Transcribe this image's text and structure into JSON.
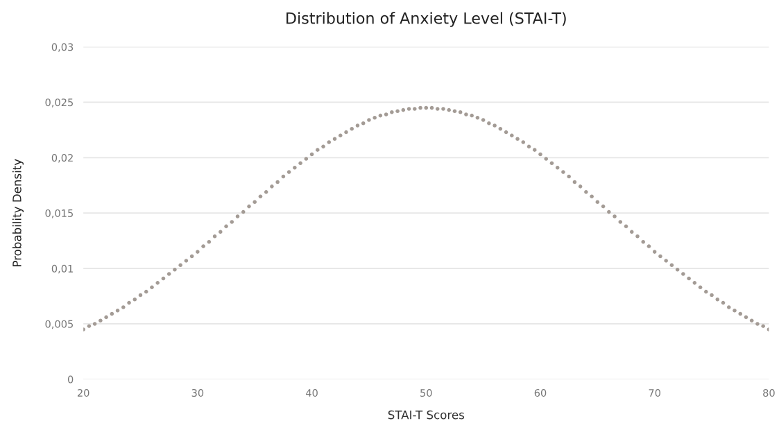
{
  "chart_data": {
    "type": "scatter",
    "title": "Distribution of Anxiety Level (STAI-T)",
    "xlabel": "STAI-T Scores",
    "ylabel": "Probability Density",
    "series": [
      {
        "color": "#a39b95",
        "x": [
          20,
          20.5,
          21,
          21.5,
          22,
          22.5,
          23,
          23.5,
          24,
          24.5,
          25,
          25.5,
          26,
          26.5,
          27,
          27.5,
          28,
          28.5,
          29,
          29.5,
          30,
          30.5,
          31,
          31.5,
          32,
          32.5,
          33,
          33.5,
          34,
          34.5,
          35,
          35.5,
          36,
          36.5,
          37,
          37.5,
          38,
          38.5,
          39,
          39.5,
          40,
          40.5,
          41,
          41.5,
          42,
          42.5,
          43,
          43.5,
          44,
          44.5,
          45,
          45.5,
          46,
          46.5,
          47,
          47.5,
          48,
          48.5,
          49,
          49.5,
          50,
          50.5,
          51,
          51.5,
          52,
          52.5,
          53,
          53.5,
          54,
          54.5,
          55,
          55.5,
          56,
          56.5,
          57,
          57.5,
          58,
          58.5,
          59,
          59.5,
          60,
          60.5,
          61,
          61.5,
          62,
          62.5,
          63,
          63.5,
          64,
          64.5,
          65,
          65.5,
          66,
          66.5,
          67,
          67.5,
          68,
          68.5,
          69,
          69.5,
          70,
          70.5,
          71,
          71.5,
          72,
          72.5,
          73,
          73.5,
          74,
          74.5,
          75,
          75.5,
          76,
          76.5,
          77,
          77.5,
          78,
          78.5,
          79,
          79.5,
          80
        ],
        "values": [
          0.0045,
          0.0048,
          0.005,
          0.0053,
          0.0056,
          0.0059,
          0.0062,
          0.0065,
          0.0069,
          0.0072,
          0.0076,
          0.0079,
          0.0083,
          0.0087,
          0.0091,
          0.0095,
          0.0099,
          0.0103,
          0.0107,
          0.0111,
          0.0115,
          0.012,
          0.0124,
          0.0129,
          0.0133,
          0.0138,
          0.0142,
          0.0147,
          0.0151,
          0.0156,
          0.016,
          0.0165,
          0.0169,
          0.0174,
          0.0178,
          0.0183,
          0.0187,
          0.0191,
          0.0195,
          0.0199,
          0.0203,
          0.0207,
          0.021,
          0.0214,
          0.0217,
          0.022,
          0.0223,
          0.0226,
          0.0229,
          0.0231,
          0.0234,
          0.0236,
          0.0238,
          0.0239,
          0.0241,
          0.0242,
          0.0243,
          0.0244,
          0.0244,
          0.0245,
          0.0245,
          0.0245,
          0.0244,
          0.0244,
          0.0243,
          0.0242,
          0.0241,
          0.0239,
          0.0238,
          0.0236,
          0.0234,
          0.0231,
          0.0229,
          0.0226,
          0.0223,
          0.022,
          0.0217,
          0.0214,
          0.021,
          0.0207,
          0.0203,
          0.0199,
          0.0195,
          0.0191,
          0.0187,
          0.0183,
          0.0178,
          0.0174,
          0.0169,
          0.0165,
          0.016,
          0.0156,
          0.0151,
          0.0147,
          0.0142,
          0.0138,
          0.0133,
          0.0129,
          0.0124,
          0.012,
          0.0115,
          0.0111,
          0.0107,
          0.0103,
          0.0099,
          0.0095,
          0.0091,
          0.0087,
          0.0083,
          0.0079,
          0.0076,
          0.0072,
          0.0069,
          0.0065,
          0.0062,
          0.0059,
          0.0056,
          0.0053,
          0.005,
          0.0048,
          0.0045
        ]
      }
    ],
    "xlim": [
      20,
      80
    ],
    "xticks": [
      20,
      30,
      40,
      50,
      60,
      70,
      80
    ],
    "ylim": [
      0,
      0.03
    ],
    "yticks": [
      0,
      {
        "value": 0.005,
        "label": "0,005"
      },
      {
        "value": 0.01,
        "label": "0,01"
      },
      {
        "value": 0.015,
        "label": "0,015"
      },
      {
        "value": 0.02,
        "label": "0,02"
      },
      {
        "value": 0.025,
        "label": "0,025"
      },
      {
        "value": 0.03,
        "label": "0,03"
      }
    ],
    "grid": "y",
    "marker": "circle"
  }
}
